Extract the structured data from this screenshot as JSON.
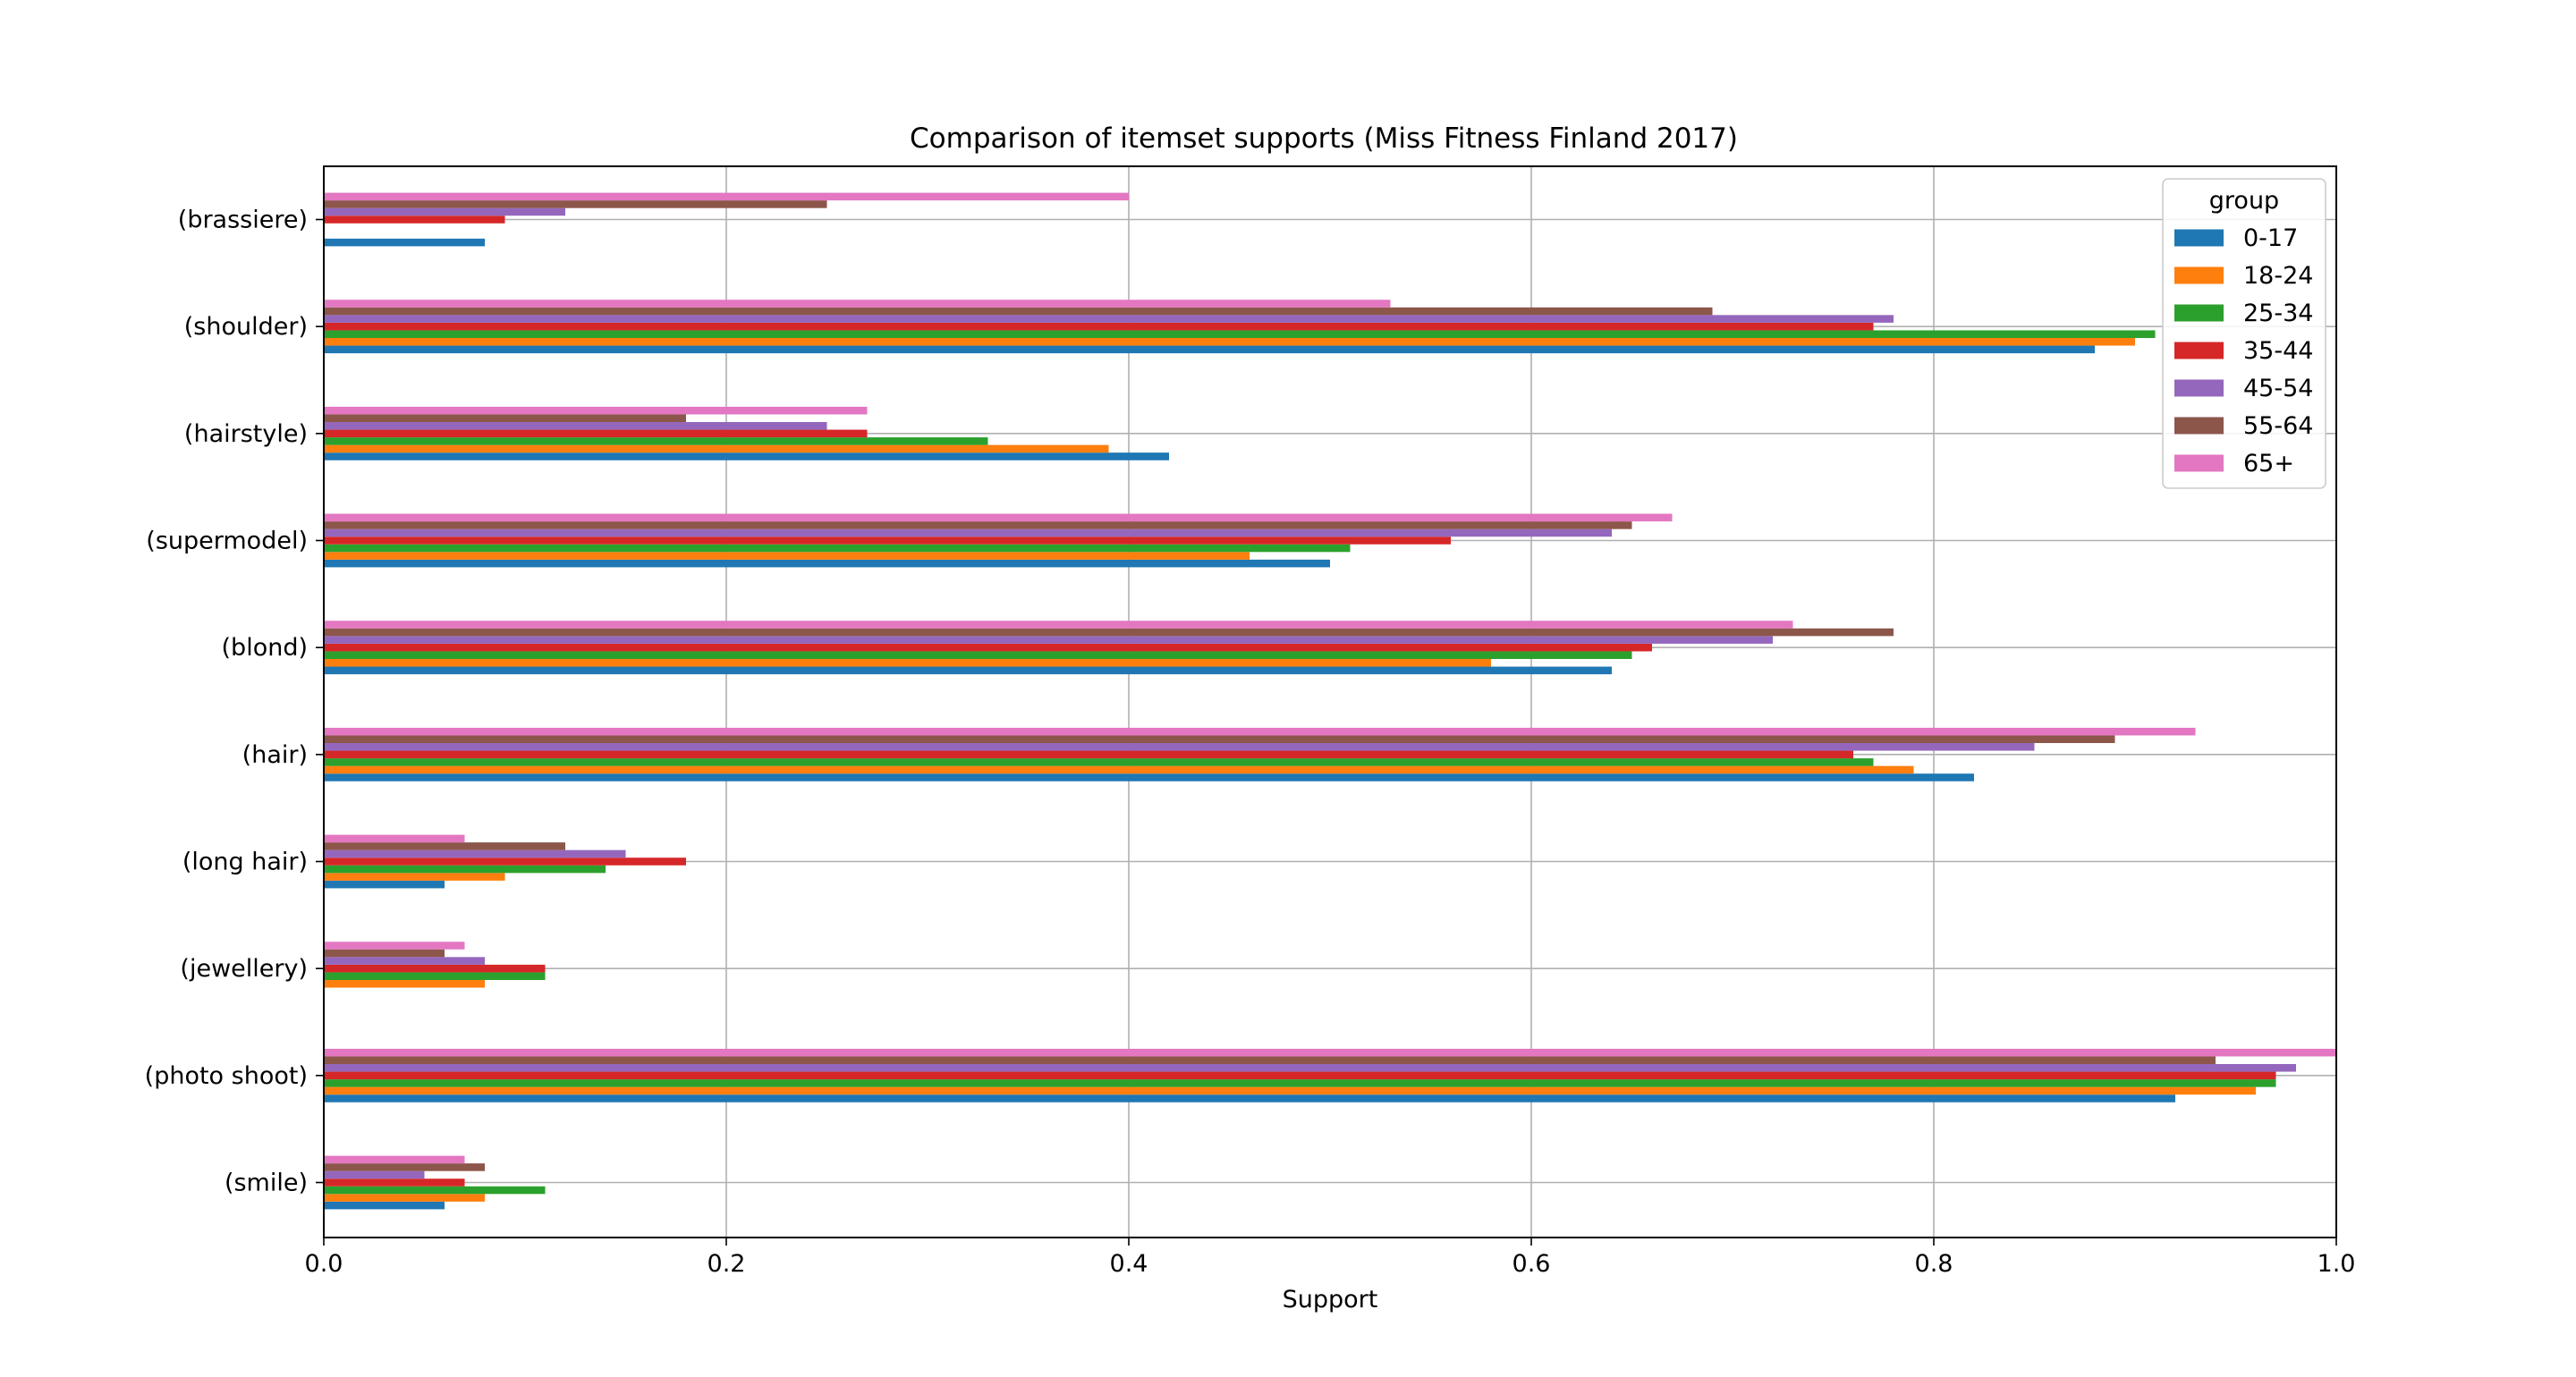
{
  "chart_data": {
    "type": "bar",
    "orientation": "horizontal",
    "title": "Comparison of itemset supports (Miss Fitness Finland 2017)",
    "xlabel": "Support",
    "ylabel": "",
    "xlim": [
      0,
      1.0
    ],
    "x_ticks": [
      0.0,
      0.2,
      0.4,
      0.6,
      0.8,
      1.0
    ],
    "x_tick_labels": [
      "0.0",
      "0.2",
      "0.4",
      "0.6",
      "0.8",
      "1.0"
    ],
    "grid": true,
    "legend": {
      "title": "group",
      "placement": "top-right"
    },
    "categories": [
      "(brassiere)",
      "(shoulder)",
      "(hairstyle)",
      "(supermodel)",
      "(blond)",
      "(hair)",
      "(long hair)",
      "(jewellery)",
      "(photo shoot)",
      "(smile)"
    ],
    "series": [
      {
        "name": "0-17",
        "color": "#1f77b4",
        "values": [
          0.08,
          0.88,
          0.42,
          0.5,
          0.64,
          0.82,
          0.06,
          0.0,
          0.92,
          0.06
        ]
      },
      {
        "name": "18-24",
        "color": "#ff7f0e",
        "values": [
          0.0,
          0.9,
          0.39,
          0.46,
          0.58,
          0.79,
          0.09,
          0.08,
          0.96,
          0.08
        ]
      },
      {
        "name": "25-34",
        "color": "#2ca02c",
        "values": [
          0.0,
          0.91,
          0.33,
          0.51,
          0.65,
          0.77,
          0.14,
          0.11,
          0.97,
          0.11
        ]
      },
      {
        "name": "35-44",
        "color": "#d62728",
        "values": [
          0.09,
          0.77,
          0.27,
          0.56,
          0.66,
          0.76,
          0.18,
          0.11,
          0.97,
          0.07
        ]
      },
      {
        "name": "45-54",
        "color": "#9467bd",
        "values": [
          0.12,
          0.78,
          0.25,
          0.64,
          0.72,
          0.85,
          0.15,
          0.08,
          0.98,
          0.05
        ]
      },
      {
        "name": "55-64",
        "color": "#8c564b",
        "values": [
          0.25,
          0.69,
          0.18,
          0.65,
          0.78,
          0.89,
          0.12,
          0.06,
          0.94,
          0.08
        ]
      },
      {
        "name": "65+",
        "color": "#e377c2",
        "values": [
          0.4,
          0.53,
          0.27,
          0.67,
          0.73,
          0.93,
          0.07,
          0.07,
          1.0,
          0.07
        ]
      }
    ]
  }
}
